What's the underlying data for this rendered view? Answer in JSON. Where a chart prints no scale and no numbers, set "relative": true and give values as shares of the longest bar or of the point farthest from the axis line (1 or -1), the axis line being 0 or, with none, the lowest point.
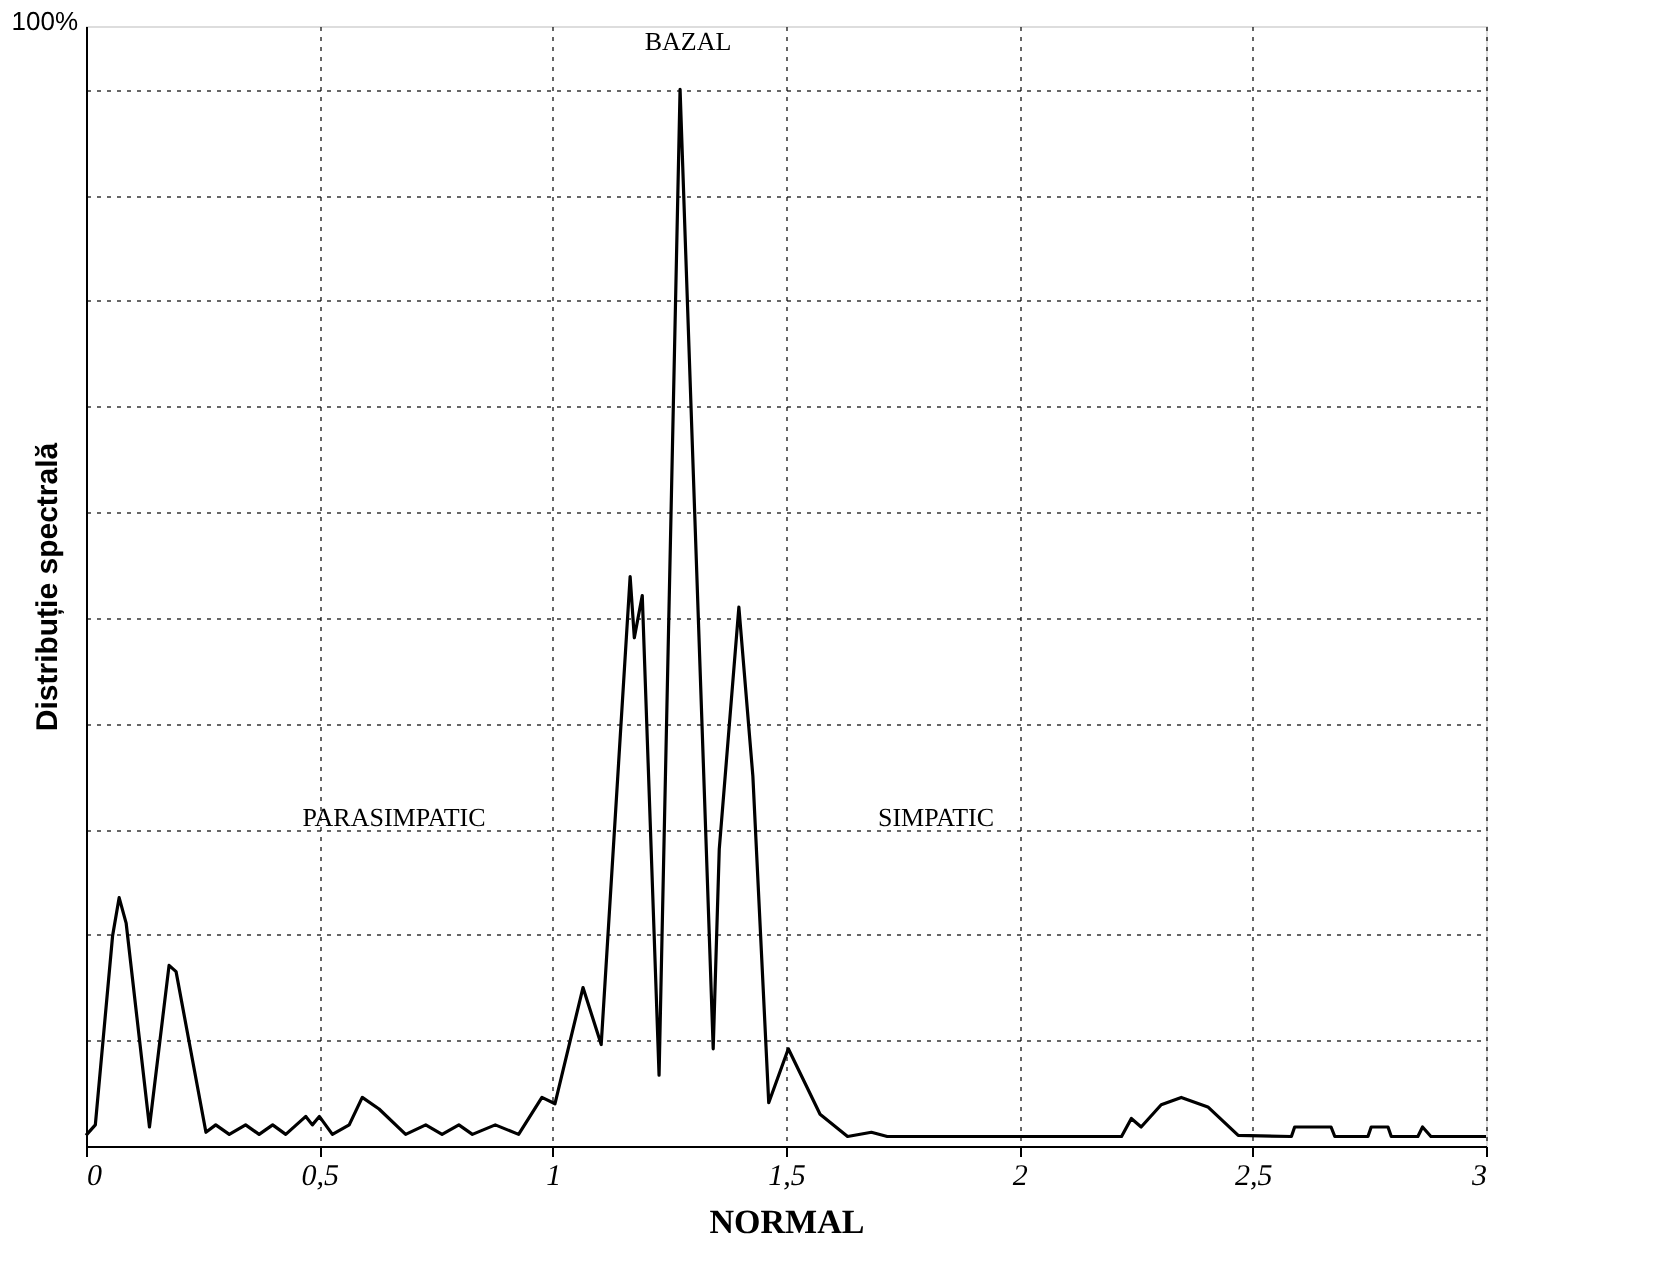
{
  "chart_data": {
    "type": "line",
    "relative": true,
    "xlabel": "NORMAL",
    "ylabel": "Distribuție spectrală",
    "xlim": [
      0,
      3
    ],
    "xticks": [
      0,
      {
        "value": 0.5,
        "label": "0,5"
      },
      1,
      {
        "value": 1.5,
        "label": "1,5"
      },
      2,
      {
        "value": 2.5,
        "label": "2,5"
      },
      3
    ],
    "grid": true,
    "marker": "none",
    "line_style": "solid",
    "annotations": [
      "100%",
      "BAZAL",
      "PARASIMPATIC",
      "SIMPATIC"
    ],
    "series": [
      {
        "color": "#000000",
        "x": [
          0.0,
          0.02,
          0.057,
          0.071,
          0.086,
          0.136,
          0.178,
          0.193,
          0.257,
          0.278,
          0.307,
          0.342,
          0.371,
          0.4,
          0.428,
          0.471,
          0.485,
          0.5,
          0.528,
          0.564,
          0.592,
          0.628,
          0.685,
          0.728,
          0.763,
          0.799,
          0.828,
          0.877,
          0.927,
          0.977,
          1.005,
          1.065,
          1.104,
          1.166,
          1.175,
          1.192,
          1.228,
          1.273,
          1.344,
          1.357,
          1.399,
          1.429,
          1.463,
          1.505,
          1.573,
          1.632,
          1.683,
          1.717,
          2.219,
          2.24,
          2.261,
          2.304,
          2.347,
          2.404,
          2.469,
          2.583,
          2.59,
          2.668,
          2.676,
          2.747,
          2.754,
          2.79,
          2.797,
          2.854,
          2.864,
          2.882,
          3.0
        ],
        "values": [
          0.01,
          0.02,
          0.199,
          0.235,
          0.211,
          0.018,
          0.171,
          0.165,
          0.013,
          0.02,
          0.011,
          0.02,
          0.011,
          0.02,
          0.011,
          0.028,
          0.02,
          0.028,
          0.011,
          0.02,
          0.046,
          0.035,
          0.011,
          0.02,
          0.011,
          0.02,
          0.011,
          0.02,
          0.011,
          0.046,
          0.04,
          0.15,
          0.096,
          0.539,
          0.481,
          0.521,
          0.067,
          1.0,
          0.092,
          0.281,
          0.51,
          0.35,
          0.041,
          0.092,
          0.03,
          0.009,
          0.013,
          0.009,
          0.009,
          0.026,
          0.018,
          0.039,
          0.046,
          0.037,
          0.01,
          0.009,
          0.018,
          0.018,
          0.009,
          0.009,
          0.018,
          0.018,
          0.009,
          0.009,
          0.018,
          0.009,
          0.009
        ]
      }
    ]
  }
}
